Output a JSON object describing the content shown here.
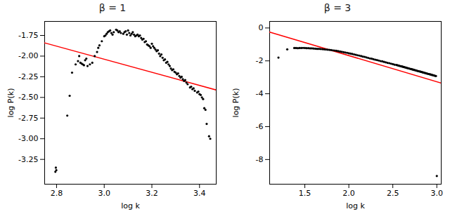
{
  "chart_data": [
    {
      "type": "scatter",
      "title": "β = 1",
      "xlabel": "log k",
      "ylabel": "log P(k)",
      "xlim": [
        2.75,
        3.47
      ],
      "ylim": [
        -3.55,
        -1.58
      ],
      "xticks": [
        2.8,
        {
          "value": 3.0,
          "label": "3.0"
        },
        3.2,
        3.4
      ],
      "yticks": [
        -1.75,
        {
          "value": -2.0,
          "label": "-2.00"
        },
        -2.25,
        {
          "value": -2.5,
          "label": "-2.50"
        },
        -2.75,
        {
          "value": -3.0,
          "label": "-3.00"
        },
        -3.25
      ],
      "grid": false,
      "series": [
        {
          "type": "scatter",
          "color": "black",
          "marker": "circle",
          "x": [
            2.795,
            2.797,
            2.799,
            2.845,
            2.855,
            2.865,
            2.88,
            2.89,
            2.895,
            2.9,
            2.905,
            2.91,
            2.915,
            2.92,
            2.925,
            2.93,
            2.94,
            2.95,
            2.96,
            2.97,
            2.975,
            2.98,
            2.99,
            3.0,
            3.005,
            3.01,
            3.015,
            3.02,
            3.025,
            3.03,
            3.035,
            3.04,
            3.05,
            3.055,
            3.06,
            3.065,
            3.07,
            3.08,
            3.085,
            3.09,
            3.095,
            3.1,
            3.105,
            3.11,
            3.115,
            3.12,
            3.125,
            3.13,
            3.135,
            3.14,
            3.145,
            3.15,
            3.155,
            3.16,
            3.165,
            3.17,
            3.175,
            3.18,
            3.185,
            3.19,
            3.195,
            3.2,
            3.205,
            3.21,
            3.215,
            3.22,
            3.225,
            3.23,
            3.235,
            3.24,
            3.245,
            3.25,
            3.255,
            3.26,
            3.265,
            3.27,
            3.275,
            3.28,
            3.285,
            3.29,
            3.295,
            3.3,
            3.305,
            3.31,
            3.315,
            3.32,
            3.325,
            3.33,
            3.335,
            3.34,
            3.345,
            3.35,
            3.36,
            3.365,
            3.37,
            3.375,
            3.38,
            3.39,
            3.395,
            3.4,
            3.405,
            3.41,
            3.415,
            3.42,
            3.425,
            3.43,
            3.44,
            3.445
          ],
          "values": [
            -3.4,
            -3.35,
            -3.38,
            -2.72,
            -2.48,
            -2.2,
            -2.1,
            -2.06,
            -2.0,
            -2.08,
            -2.09,
            -2.1,
            -2.11,
            -2.05,
            -2.03,
            -2.12,
            -2.1,
            -2.08,
            -2.0,
            -1.95,
            -1.9,
            -1.87,
            -1.82,
            -1.76,
            -1.75,
            -1.73,
            -1.71,
            -1.7,
            -1.69,
            -1.72,
            -1.74,
            -1.71,
            -1.68,
            -1.69,
            -1.71,
            -1.7,
            -1.72,
            -1.73,
            -1.71,
            -1.7,
            -1.74,
            -1.69,
            -1.72,
            -1.75,
            -1.73,
            -1.71,
            -1.74,
            -1.76,
            -1.75,
            -1.74,
            -1.76,
            -1.75,
            -1.78,
            -1.8,
            -1.79,
            -1.83,
            -1.82,
            -1.86,
            -1.87,
            -1.88,
            -1.9,
            -1.85,
            -1.88,
            -1.9,
            -1.92,
            -1.94,
            -1.93,
            -1.97,
            -2.0,
            -1.98,
            -2.02,
            -2.05,
            -2.04,
            -2.08,
            -2.07,
            -2.1,
            -2.12,
            -2.15,
            -2.17,
            -2.16,
            -2.19,
            -2.2,
            -2.22,
            -2.21,
            -2.24,
            -2.26,
            -2.25,
            -2.28,
            -2.3,
            -2.29,
            -2.32,
            -2.34,
            -2.38,
            -2.37,
            -2.4,
            -2.39,
            -2.42,
            -2.44,
            -2.43,
            -2.46,
            -2.47,
            -2.5,
            -2.52,
            -2.63,
            -2.65,
            -2.82,
            -2.97,
            -3.0
          ]
        },
        {
          "type": "line",
          "color": "red",
          "line_style": "solid",
          "x": [
            2.75,
            3.47
          ],
          "values": [
            -1.84,
            -2.41
          ]
        }
      ]
    },
    {
      "type": "scatter",
      "title": "β = 3",
      "xlabel": "log k",
      "ylabel": "log P(k)",
      "xlim": [
        1.1,
        3.05
      ],
      "ylim": [
        -9.5,
        0.4
      ],
      "xticks": [
        1.5,
        {
          "value": 2.0,
          "label": "2.0"
        },
        2.5,
        {
          "value": 3.0,
          "label": "3.0"
        }
      ],
      "yticks": [
        0,
        -2,
        -4,
        -6,
        -8
      ],
      "grid": false,
      "series": [
        {
          "type": "scatter",
          "color": "black",
          "marker": "circle",
          "x": [
            1.2,
            1.3,
            1.38,
            1.4,
            1.42,
            1.44,
            1.46,
            1.48,
            1.5,
            1.52,
            1.54,
            1.56,
            1.58,
            1.6,
            1.62,
            1.64,
            1.66,
            1.68,
            1.7,
            1.72,
            1.74,
            1.76,
            1.78,
            1.8,
            1.82,
            1.84,
            1.86,
            1.88,
            1.9,
            1.92,
            1.94,
            1.96,
            1.98,
            2.0,
            2.02,
            2.04,
            2.06,
            2.08,
            2.1,
            2.12,
            2.14,
            2.16,
            2.18,
            2.2,
            2.22,
            2.24,
            2.26,
            2.28,
            2.3,
            2.32,
            2.34,
            2.36,
            2.38,
            2.4,
            2.42,
            2.44,
            2.46,
            2.48,
            2.5,
            2.52,
            2.54,
            2.55,
            2.56,
            2.57,
            2.58,
            2.59,
            2.6,
            2.61,
            2.62,
            2.63,
            2.64,
            2.65,
            2.66,
            2.67,
            2.68,
            2.69,
            2.7,
            2.71,
            2.72,
            2.73,
            2.74,
            2.75,
            2.76,
            2.77,
            2.78,
            2.79,
            2.8,
            2.81,
            2.82,
            2.83,
            2.84,
            2.85,
            2.86,
            2.87,
            2.88,
            2.89,
            2.9,
            2.91,
            2.92,
            2.93,
            2.94,
            2.95,
            2.96,
            2.97,
            2.98,
            2.99,
            3.0
          ],
          "values": [
            -1.8,
            -1.3,
            -1.22,
            -1.22,
            -1.23,
            -1.22,
            -1.22,
            -1.21,
            -1.22,
            -1.23,
            -1.23,
            -1.24,
            -1.24,
            -1.25,
            -1.26,
            -1.27,
            -1.27,
            -1.28,
            -1.29,
            -1.3,
            -1.31,
            -1.32,
            -1.33,
            -1.34,
            -1.36,
            -1.37,
            -1.39,
            -1.41,
            -1.43,
            -1.45,
            -1.47,
            -1.49,
            -1.51,
            -1.54,
            -1.56,
            -1.58,
            -1.61,
            -1.63,
            -1.66,
            -1.68,
            -1.71,
            -1.74,
            -1.76,
            -1.79,
            -1.82,
            -1.85,
            -1.87,
            -1.9,
            -1.93,
            -1.95,
            -1.98,
            -2.01,
            -2.03,
            -2.06,
            -2.09,
            -2.12,
            -2.14,
            -2.17,
            -2.2,
            -2.23,
            -2.25,
            -2.26,
            -2.28,
            -2.29,
            -2.31,
            -2.32,
            -2.34,
            -2.35,
            -2.37,
            -2.38,
            -2.4,
            -2.41,
            -2.43,
            -2.44,
            -2.46,
            -2.47,
            -2.49,
            -2.5,
            -2.52,
            -2.53,
            -2.55,
            -2.56,
            -2.58,
            -2.59,
            -2.61,
            -2.62,
            -2.64,
            -2.65,
            -2.67,
            -2.68,
            -2.7,
            -2.71,
            -2.73,
            -2.74,
            -2.76,
            -2.77,
            -2.79,
            -2.8,
            -2.82,
            -2.83,
            -2.85,
            -2.86,
            -2.88,
            -2.89,
            -2.91,
            -2.92,
            -9.0
          ]
        },
        {
          "type": "line",
          "color": "red",
          "line_style": "solid",
          "x": [
            1.1,
            3.05
          ],
          "values": [
            -0.25,
            -3.35
          ]
        }
      ]
    }
  ]
}
